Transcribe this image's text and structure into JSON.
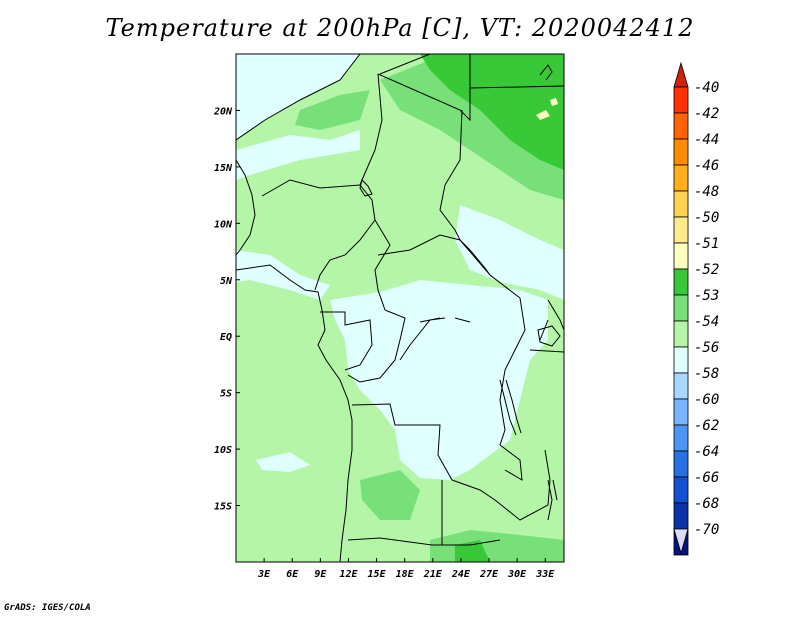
{
  "title": "Temperature at 200hPa [C], VT: 2020042412",
  "footer": "GrADS: IGES/COLA",
  "map": {
    "lon_range": [
      0,
      35
    ],
    "lat_range": [
      -20,
      25
    ],
    "lon_ticks": [
      {
        "value": 3,
        "label": "3E"
      },
      {
        "value": 6,
        "label": "6E"
      },
      {
        "value": 9,
        "label": "9E"
      },
      {
        "value": 12,
        "label": "12E"
      },
      {
        "value": 15,
        "label": "15E"
      },
      {
        "value": 18,
        "label": "18E"
      },
      {
        "value": 21,
        "label": "21E"
      },
      {
        "value": 24,
        "label": "24E"
      },
      {
        "value": 27,
        "label": "27E"
      },
      {
        "value": 30,
        "label": "30E"
      },
      {
        "value": 33,
        "label": "33E"
      }
    ],
    "lat_ticks": [
      {
        "value": 20,
        "label": "20N"
      },
      {
        "value": 15,
        "label": "15N"
      },
      {
        "value": 10,
        "label": "10N"
      },
      {
        "value": 5,
        "label": "5N"
      },
      {
        "value": 0,
        "label": "EQ"
      },
      {
        "value": -5,
        "label": "5S"
      },
      {
        "value": -10,
        "label": "10S"
      },
      {
        "value": -15,
        "label": "15S"
      }
    ]
  },
  "colorbar": {
    "top_color": "#d22010",
    "bottom_color": "#dcdcf5",
    "levels": [
      {
        "label": "-40",
        "color": "#ff3200"
      },
      {
        "label": "-42",
        "color": "#ff6400"
      },
      {
        "label": "-44",
        "color": "#ff8c00"
      },
      {
        "label": "-46",
        "color": "#ffaf1e"
      },
      {
        "label": "-48",
        "color": "#ffd250"
      },
      {
        "label": "-50",
        "color": "#ffeb8c"
      },
      {
        "label": "-51",
        "color": "#ffffc0"
      },
      {
        "label": "-52",
        "color": "#38c838"
      },
      {
        "label": "-53",
        "color": "#78e078"
      },
      {
        "label": "-54",
        "color": "#b4f5a8"
      },
      {
        "label": "-56",
        "color": "#e0ffff"
      },
      {
        "label": "-58",
        "color": "#a8d8ff"
      },
      {
        "label": "-60",
        "color": "#78b4ff"
      },
      {
        "label": "-62",
        "color": "#4c94f5"
      },
      {
        "label": "-64",
        "color": "#2870e6"
      },
      {
        "label": "-66",
        "color": "#1450d2"
      },
      {
        "label": "-68",
        "color": "#0a32aa"
      },
      {
        "label": "-70",
        "color": "#051478"
      }
    ]
  }
}
